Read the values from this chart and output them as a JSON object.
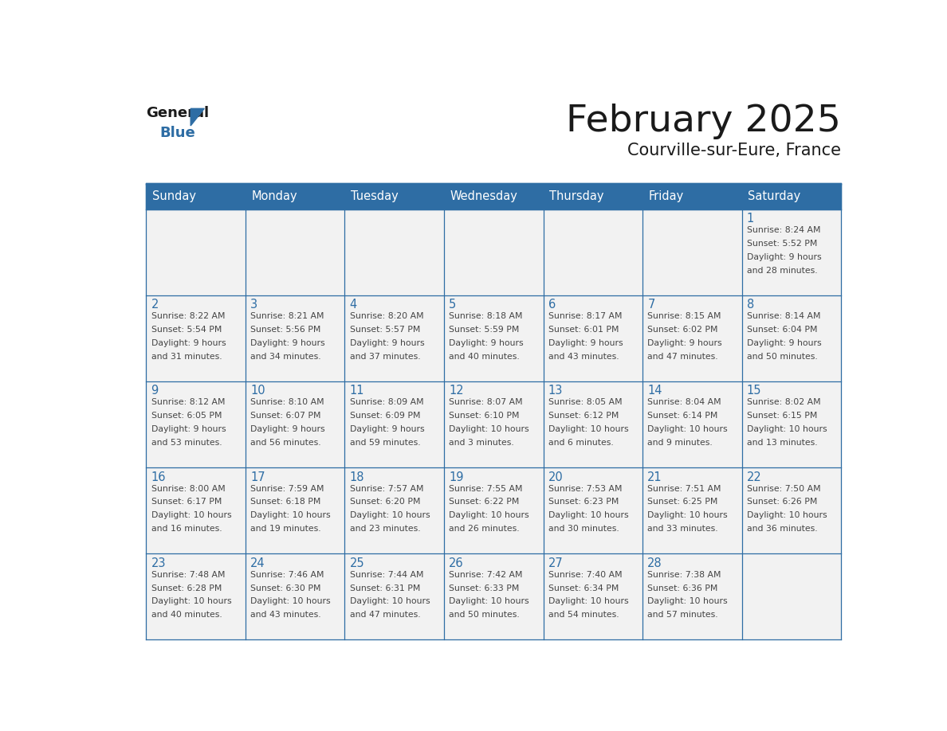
{
  "title": "February 2025",
  "subtitle": "Courville-sur-Eure, France",
  "days_of_week": [
    "Sunday",
    "Monday",
    "Tuesday",
    "Wednesday",
    "Thursday",
    "Friday",
    "Saturday"
  ],
  "header_bg": "#2E6DA4",
  "header_text": "#FFFFFF",
  "cell_bg": "#F2F2F2",
  "border_color": "#2E6DA4",
  "text_color": "#444444",
  "day_number_color": "#2E6DA4",
  "logo_text_color": "#1a1a1a",
  "logo_blue_color": "#2E6DA4",
  "calendar_data": [
    [
      null,
      null,
      null,
      null,
      null,
      null,
      {
        "day": "1",
        "sunrise": "8:24 AM",
        "sunset": "5:52 PM",
        "daylight": "9 hours\nand 28 minutes."
      }
    ],
    [
      {
        "day": "2",
        "sunrise": "8:22 AM",
        "sunset": "5:54 PM",
        "daylight": "9 hours\nand 31 minutes."
      },
      {
        "day": "3",
        "sunrise": "8:21 AM",
        "sunset": "5:56 PM",
        "daylight": "9 hours\nand 34 minutes."
      },
      {
        "day": "4",
        "sunrise": "8:20 AM",
        "sunset": "5:57 PM",
        "daylight": "9 hours\nand 37 minutes."
      },
      {
        "day": "5",
        "sunrise": "8:18 AM",
        "sunset": "5:59 PM",
        "daylight": "9 hours\nand 40 minutes."
      },
      {
        "day": "6",
        "sunrise": "8:17 AM",
        "sunset": "6:01 PM",
        "daylight": "9 hours\nand 43 minutes."
      },
      {
        "day": "7",
        "sunrise": "8:15 AM",
        "sunset": "6:02 PM",
        "daylight": "9 hours\nand 47 minutes."
      },
      {
        "day": "8",
        "sunrise": "8:14 AM",
        "sunset": "6:04 PM",
        "daylight": "9 hours\nand 50 minutes."
      }
    ],
    [
      {
        "day": "9",
        "sunrise": "8:12 AM",
        "sunset": "6:05 PM",
        "daylight": "9 hours\nand 53 minutes."
      },
      {
        "day": "10",
        "sunrise": "8:10 AM",
        "sunset": "6:07 PM",
        "daylight": "9 hours\nand 56 minutes."
      },
      {
        "day": "11",
        "sunrise": "8:09 AM",
        "sunset": "6:09 PM",
        "daylight": "9 hours\nand 59 minutes."
      },
      {
        "day": "12",
        "sunrise": "8:07 AM",
        "sunset": "6:10 PM",
        "daylight": "10 hours\nand 3 minutes."
      },
      {
        "day": "13",
        "sunrise": "8:05 AM",
        "sunset": "6:12 PM",
        "daylight": "10 hours\nand 6 minutes."
      },
      {
        "day": "14",
        "sunrise": "8:04 AM",
        "sunset": "6:14 PM",
        "daylight": "10 hours\nand 9 minutes."
      },
      {
        "day": "15",
        "sunrise": "8:02 AM",
        "sunset": "6:15 PM",
        "daylight": "10 hours\nand 13 minutes."
      }
    ],
    [
      {
        "day": "16",
        "sunrise": "8:00 AM",
        "sunset": "6:17 PM",
        "daylight": "10 hours\nand 16 minutes."
      },
      {
        "day": "17",
        "sunrise": "7:59 AM",
        "sunset": "6:18 PM",
        "daylight": "10 hours\nand 19 minutes."
      },
      {
        "day": "18",
        "sunrise": "7:57 AM",
        "sunset": "6:20 PM",
        "daylight": "10 hours\nand 23 minutes."
      },
      {
        "day": "19",
        "sunrise": "7:55 AM",
        "sunset": "6:22 PM",
        "daylight": "10 hours\nand 26 minutes."
      },
      {
        "day": "20",
        "sunrise": "7:53 AM",
        "sunset": "6:23 PM",
        "daylight": "10 hours\nand 30 minutes."
      },
      {
        "day": "21",
        "sunrise": "7:51 AM",
        "sunset": "6:25 PM",
        "daylight": "10 hours\nand 33 minutes."
      },
      {
        "day": "22",
        "sunrise": "7:50 AM",
        "sunset": "6:26 PM",
        "daylight": "10 hours\nand 36 minutes."
      }
    ],
    [
      {
        "day": "23",
        "sunrise": "7:48 AM",
        "sunset": "6:28 PM",
        "daylight": "10 hours\nand 40 minutes."
      },
      {
        "day": "24",
        "sunrise": "7:46 AM",
        "sunset": "6:30 PM",
        "daylight": "10 hours\nand 43 minutes."
      },
      {
        "day": "25",
        "sunrise": "7:44 AM",
        "sunset": "6:31 PM",
        "daylight": "10 hours\nand 47 minutes."
      },
      {
        "day": "26",
        "sunrise": "7:42 AM",
        "sunset": "6:33 PM",
        "daylight": "10 hours\nand 50 minutes."
      },
      {
        "day": "27",
        "sunrise": "7:40 AM",
        "sunset": "6:34 PM",
        "daylight": "10 hours\nand 54 minutes."
      },
      {
        "day": "28",
        "sunrise": "7:38 AM",
        "sunset": "6:36 PM",
        "daylight": "10 hours\nand 57 minutes."
      },
      null
    ]
  ]
}
